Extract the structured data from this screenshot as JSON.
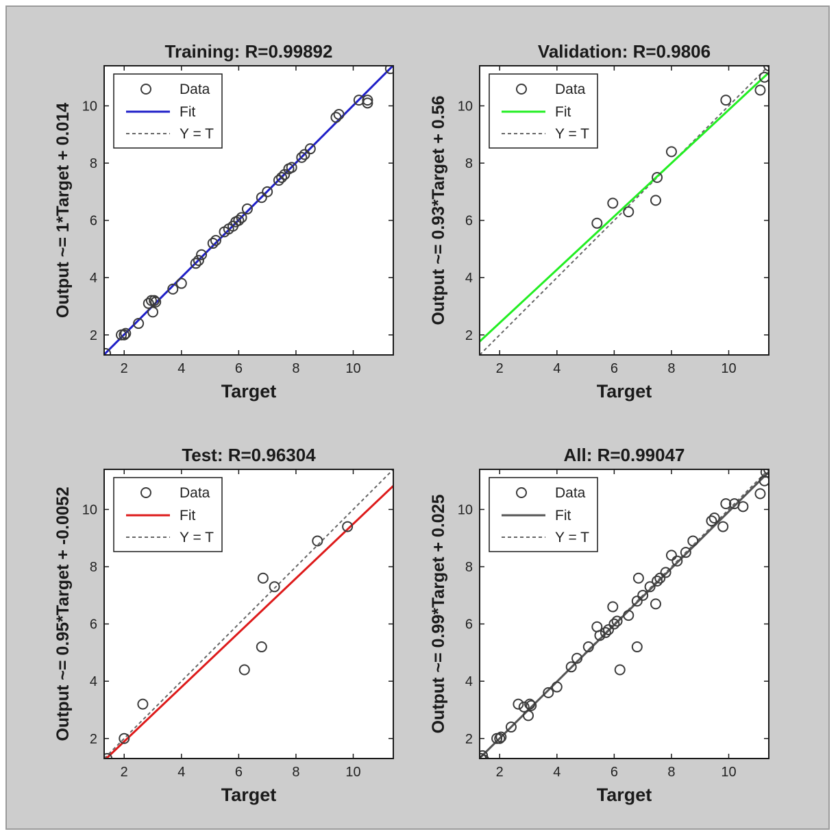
{
  "chart_data": [
    {
      "type": "scatter",
      "title": "Training: R=0.99892",
      "xlabel": "Target",
      "ylabel": "Output ~= 1*Target + 0.014",
      "xlim": [
        1.3,
        11.4
      ],
      "ylim": [
        1.3,
        11.4
      ],
      "xticks": [
        "2",
        "4",
        "6",
        "8",
        "10"
      ],
      "yticks": [
        "2",
        "4",
        "6",
        "8",
        "10"
      ],
      "fit_color": "#1f1fc8",
      "fit": {
        "slope": 1.0,
        "intercept": 0.014
      },
      "legend": {
        "position": "top-left",
        "entries": [
          "Data",
          "Fit",
          "Y = T"
        ]
      },
      "points": [
        [
          1.35,
          1.35
        ],
        [
          1.9,
          2.0
        ],
        [
          2.0,
          2.0
        ],
        [
          2.05,
          2.05
        ],
        [
          2.5,
          2.4
        ],
        [
          2.85,
          3.1
        ],
        [
          2.95,
          3.2
        ],
        [
          3.0,
          2.8
        ],
        [
          3.05,
          3.2
        ],
        [
          3.1,
          3.15
        ],
        [
          3.7,
          3.6
        ],
        [
          4.0,
          3.8
        ],
        [
          4.5,
          4.5
        ],
        [
          4.6,
          4.6
        ],
        [
          4.7,
          4.8
        ],
        [
          5.1,
          5.2
        ],
        [
          5.2,
          5.3
        ],
        [
          5.5,
          5.6
        ],
        [
          5.65,
          5.7
        ],
        [
          5.8,
          5.8
        ],
        [
          5.9,
          5.95
        ],
        [
          6.0,
          6.0
        ],
        [
          6.1,
          6.1
        ],
        [
          6.3,
          6.4
        ],
        [
          6.8,
          6.8
        ],
        [
          7.0,
          7.0
        ],
        [
          7.4,
          7.4
        ],
        [
          7.5,
          7.5
        ],
        [
          7.6,
          7.6
        ],
        [
          7.75,
          7.8
        ],
        [
          7.85,
          7.85
        ],
        [
          8.2,
          8.2
        ],
        [
          8.3,
          8.3
        ],
        [
          8.5,
          8.5
        ],
        [
          9.4,
          9.6
        ],
        [
          9.5,
          9.7
        ],
        [
          10.2,
          10.2
        ],
        [
          10.5,
          10.2
        ],
        [
          10.5,
          10.1
        ],
        [
          11.3,
          11.3
        ]
      ]
    },
    {
      "type": "scatter",
      "title": "Validation: R=0.9806",
      "xlabel": "Target",
      "ylabel": "Output ~= 0.93*Target + 0.56",
      "xlim": [
        1.3,
        11.4
      ],
      "ylim": [
        1.3,
        11.4
      ],
      "xticks": [
        "2",
        "4",
        "6",
        "8",
        "10"
      ],
      "yticks": [
        "2",
        "4",
        "6",
        "8",
        "10"
      ],
      "fit_color": "#22ee22",
      "fit": {
        "slope": 0.93,
        "intercept": 0.56
      },
      "legend": {
        "position": "top-left",
        "entries": [
          "Data",
          "Fit",
          "Y = T"
        ]
      },
      "points": [
        [
          5.4,
          5.9
        ],
        [
          5.95,
          6.6
        ],
        [
          6.5,
          6.3
        ],
        [
          7.45,
          6.7
        ],
        [
          7.5,
          7.5
        ],
        [
          8.0,
          8.4
        ],
        [
          9.9,
          10.2
        ],
        [
          11.1,
          10.55
        ],
        [
          11.25,
          11.0
        ],
        [
          11.4,
          11.4
        ]
      ]
    },
    {
      "type": "scatter",
      "title": "Test: R=0.96304",
      "xlabel": "Target",
      "ylabel": "Output ~= 0.95*Target + -0.0052",
      "xlim": [
        1.3,
        11.4
      ],
      "ylim": [
        1.3,
        11.4
      ],
      "xticks": [
        "2",
        "4",
        "6",
        "8",
        "10"
      ],
      "yticks": [
        "2",
        "4",
        "6",
        "8",
        "10"
      ],
      "fit_color": "#dd1a1a",
      "fit": {
        "slope": 0.95,
        "intercept": -0.0052
      },
      "legend": {
        "position": "top-left",
        "entries": [
          "Data",
          "Fit",
          "Y = T"
        ]
      },
      "points": [
        [
          1.4,
          1.3
        ],
        [
          2.0,
          2.0
        ],
        [
          2.65,
          3.2
        ],
        [
          6.2,
          4.4
        ],
        [
          6.8,
          5.2
        ],
        [
          6.85,
          7.6
        ],
        [
          7.25,
          7.3
        ],
        [
          8.75,
          8.9
        ],
        [
          9.8,
          9.4
        ]
      ]
    },
    {
      "type": "scatter",
      "title": "All: R=0.99047",
      "xlabel": "Target",
      "ylabel": "Output ~= 0.99*Target + 0.025",
      "xlim": [
        1.3,
        11.4
      ],
      "ylim": [
        1.3,
        11.4
      ],
      "xticks": [
        "2",
        "4",
        "6",
        "8",
        "10"
      ],
      "yticks": [
        "2",
        "4",
        "6",
        "8",
        "10"
      ],
      "fit_color": "#555555",
      "fit": {
        "slope": 0.99,
        "intercept": 0.025
      },
      "legend": {
        "position": "top-left",
        "entries": [
          "Data",
          "Fit",
          "Y = T"
        ]
      },
      "points": [
        [
          1.35,
          1.3
        ],
        [
          1.4,
          1.4
        ],
        [
          1.45,
          1.25
        ],
        [
          1.9,
          2.0
        ],
        [
          2.0,
          2.0
        ],
        [
          2.05,
          2.05
        ],
        [
          2.4,
          2.4
        ],
        [
          2.65,
          3.2
        ],
        [
          2.85,
          3.1
        ],
        [
          3.0,
          2.8
        ],
        [
          3.05,
          3.2
        ],
        [
          3.1,
          3.15
        ],
        [
          3.7,
          3.6
        ],
        [
          4.0,
          3.8
        ],
        [
          4.5,
          4.5
        ],
        [
          4.7,
          4.8
        ],
        [
          5.1,
          5.2
        ],
        [
          5.4,
          5.9
        ],
        [
          5.5,
          5.6
        ],
        [
          5.7,
          5.7
        ],
        [
          5.8,
          5.8
        ],
        [
          5.95,
          6.6
        ],
        [
          6.0,
          6.0
        ],
        [
          6.1,
          6.1
        ],
        [
          6.2,
          4.4
        ],
        [
          6.5,
          6.3
        ],
        [
          6.8,
          5.2
        ],
        [
          6.8,
          6.8
        ],
        [
          6.85,
          7.6
        ],
        [
          7.0,
          7.0
        ],
        [
          7.25,
          7.3
        ],
        [
          7.45,
          6.7
        ],
        [
          7.5,
          7.5
        ],
        [
          7.6,
          7.6
        ],
        [
          7.8,
          7.8
        ],
        [
          8.0,
          8.4
        ],
        [
          8.2,
          8.2
        ],
        [
          8.5,
          8.5
        ],
        [
          8.75,
          8.9
        ],
        [
          9.4,
          9.6
        ],
        [
          9.5,
          9.7
        ],
        [
          9.8,
          9.4
        ],
        [
          9.9,
          10.2
        ],
        [
          10.2,
          10.2
        ],
        [
          10.5,
          10.1
        ],
        [
          11.1,
          10.55
        ],
        [
          11.25,
          11.0
        ],
        [
          11.3,
          11.3
        ],
        [
          11.4,
          11.4
        ]
      ]
    }
  ]
}
